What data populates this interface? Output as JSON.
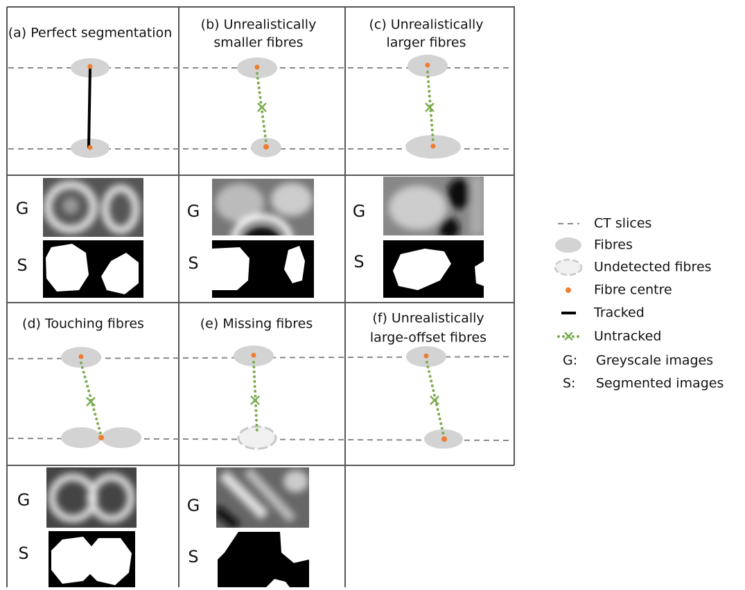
{
  "panels": [
    {
      "title": [
        "(a) Perfect segmentation"
      ],
      "g_label": "G",
      "s_label": "S"
    },
    {
      "title": [
        "(b) Unrealistically",
        "smaller fibres"
      ],
      "g_label": "G",
      "s_label": "S"
    },
    {
      "title": [
        "(c) Unrealistically",
        "larger fibres"
      ],
      "g_label": "G",
      "s_label": "S"
    },
    {
      "title": [
        "(d) Touching fibres"
      ],
      "g_label": "G",
      "s_label": "S"
    },
    {
      "title": [
        "(e) Missing fibres"
      ],
      "g_label": "G",
      "s_label": "S"
    },
    {
      "title": [
        "(f) Unrealistically",
        "large-offset fibres"
      ]
    }
  ],
  "legend": [
    {
      "label": "CT slices"
    },
    {
      "label": "Fibres"
    },
    {
      "label": "Undetected fibres"
    },
    {
      "label": "Fibre centre"
    },
    {
      "label": "Tracked"
    },
    {
      "label": "Untracked"
    },
    {
      "key": "G:",
      "label": "Greyscale images"
    },
    {
      "key": "S:",
      "label": "Segmented images"
    }
  ]
}
